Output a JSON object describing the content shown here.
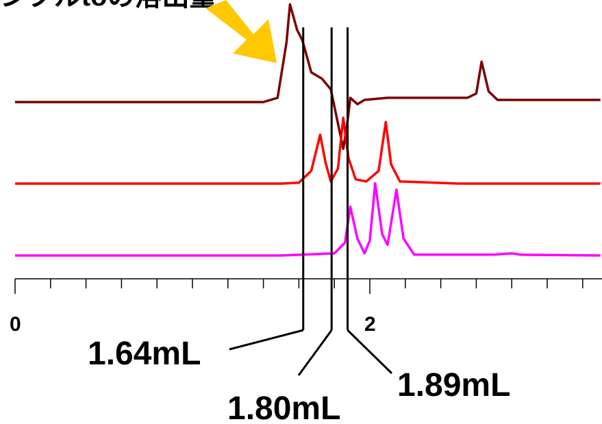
{
  "chart_data": {
    "type": "line",
    "title": "",
    "title_fragment": "ンプルtoの溶出量",
    "xlabel": "",
    "ylabel": "",
    "xlim": [
      0,
      3.3
    ],
    "x_ticks": [
      {
        "value": 0,
        "label": "0"
      },
      {
        "value": 2,
        "label": "2"
      }
    ],
    "x_minor_tick_step": 0.2,
    "grid": false,
    "legend": "none",
    "annotation_arrow_color": "#FFC800",
    "series": [
      {
        "color": "#7A0000",
        "baseline": 0,
        "points": [
          [
            0,
            0
          ],
          [
            0.5,
            0
          ],
          [
            1.0,
            0
          ],
          [
            1.4,
            0
          ],
          [
            1.48,
            0.1
          ],
          [
            1.53,
            1.4
          ],
          [
            1.55,
            2.3
          ],
          [
            1.59,
            1.7
          ],
          [
            1.62,
            1.45
          ],
          [
            1.67,
            0.7
          ],
          [
            1.73,
            0.55
          ],
          [
            1.78,
            0.3
          ],
          [
            1.83,
            -0.7
          ],
          [
            1.85,
            -1.1
          ],
          [
            1.87,
            -0.6
          ],
          [
            1.89,
            0.1
          ],
          [
            1.93,
            -0.05
          ],
          [
            1.97,
            0.05
          ],
          [
            2.1,
            0.1
          ],
          [
            2.55,
            0.1
          ],
          [
            2.6,
            0.2
          ],
          [
            2.63,
            0.95
          ],
          [
            2.67,
            0.25
          ],
          [
            2.72,
            0.05
          ],
          [
            3.0,
            0.05
          ],
          [
            3.3,
            0.05
          ]
        ]
      },
      {
        "color": "#FF0000",
        "baseline": 0,
        "points": [
          [
            0,
            0
          ],
          [
            0.5,
            0
          ],
          [
            1.0,
            0
          ],
          [
            1.5,
            0
          ],
          [
            1.6,
            0.02
          ],
          [
            1.67,
            0.3
          ],
          [
            1.72,
            1.15
          ],
          [
            1.75,
            0.5
          ],
          [
            1.78,
            0.05
          ],
          [
            1.82,
            0.35
          ],
          [
            1.85,
            1.55
          ],
          [
            1.88,
            0.6
          ],
          [
            1.92,
            0.1
          ],
          [
            1.98,
            0.05
          ],
          [
            2.05,
            0.3
          ],
          [
            2.09,
            1.45
          ],
          [
            2.12,
            0.45
          ],
          [
            2.17,
            0.05
          ],
          [
            2.5,
            0
          ],
          [
            3.0,
            0
          ],
          [
            3.3,
            0
          ]
        ]
      },
      {
        "color": "#FF00FF",
        "baseline": 0,
        "points": [
          [
            0,
            0
          ],
          [
            0.5,
            0
          ],
          [
            1.0,
            0
          ],
          [
            1.5,
            0
          ],
          [
            1.8,
            0.05
          ],
          [
            1.86,
            0.3
          ],
          [
            1.89,
            1.15
          ],
          [
            1.93,
            0.4
          ],
          [
            1.97,
            0.05
          ],
          [
            2.0,
            0.35
          ],
          [
            2.03,
            1.7
          ],
          [
            2.07,
            0.5
          ],
          [
            2.1,
            0.25
          ],
          [
            2.15,
            1.55
          ],
          [
            2.19,
            0.4
          ],
          [
            2.25,
            0.02
          ],
          [
            2.7,
            0.02
          ],
          [
            2.8,
            0.05
          ],
          [
            2.85,
            0.02
          ],
          [
            3.3,
            0
          ]
        ]
      }
    ],
    "markers": [
      {
        "x": 1.64,
        "label": "1.64mL"
      },
      {
        "x": 1.8,
        "label": "1.80mL"
      },
      {
        "x": 1.89,
        "label": "1.89mL"
      }
    ]
  }
}
